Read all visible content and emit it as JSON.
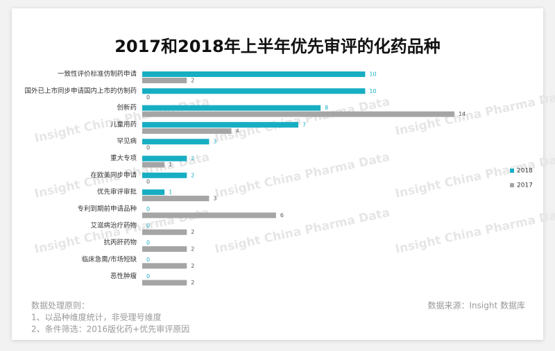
{
  "chart_data": {
    "type": "hbar",
    "title": "2017和2018年上半年优先审评的化药品种",
    "categories": [
      "一致性评价标准仿制药申请",
      "国外已上市同步申请国内上市的仿制药",
      "创新药",
      "儿童用药",
      "罕见病",
      "重大专项",
      "在欧美同步申请",
      "优先审评审批",
      "专利到期前申请品种",
      "艾滋病治疗药物",
      "抗丙肝药物",
      "临床急需/市场短缺",
      "恶性肿瘤"
    ],
    "series": [
      {
        "name": "2018",
        "color": "#17aec2",
        "values": [
          10,
          10,
          8,
          7,
          3,
          2,
          2,
          1,
          0,
          0,
          0,
          0,
          0
        ]
      },
      {
        "name": "2017",
        "color": "#a5a5a5",
        "values": [
          2,
          0,
          14,
          4,
          0,
          1,
          0,
          3,
          6,
          2,
          2,
          2,
          2
        ]
      }
    ],
    "legend": "right",
    "watermark": "Insight China Pharma Data",
    "notes": [
      "数据处理原则：",
      "1、以品种维度统计，非受理号维度",
      "2、条件筛选：2016版化药+优先审评原因"
    ],
    "source": "数据来源：Insight 数据库"
  }
}
